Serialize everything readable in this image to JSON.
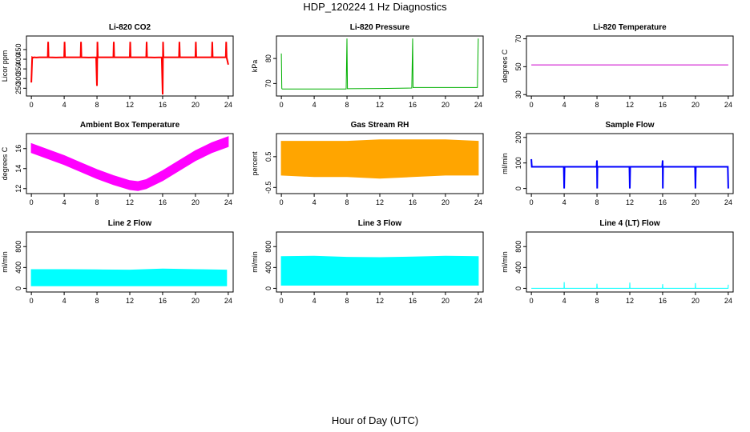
{
  "page": {
    "title": "HDP_120224  1 Hz Diagnostics",
    "xlabel": "Hour of Day (UTC)"
  },
  "chart_data": [
    {
      "type": "line",
      "title": "Li-820 CO2",
      "ylabel": "Licor ppm",
      "color": "#ff0000",
      "xlim": [
        -0.6,
        24.6
      ],
      "ylim": [
        210,
        520
      ],
      "yticks": [
        250,
        300,
        350,
        400,
        450
      ],
      "xticks": [
        0,
        4,
        8,
        12,
        16,
        20,
        24
      ],
      "series": [
        {
          "x": [
            0,
            0.1,
            0.2,
            0.3,
            0.6,
            1.0,
            2.0,
            2.05,
            2.1,
            3.0,
            4.0,
            4.05,
            4.1,
            5.0,
            6.0,
            6.05,
            6.1,
            7.0,
            7.9,
            8.0,
            8.05,
            8.1,
            9.0,
            10.0,
            10.05,
            10.1,
            11.0,
            12.0,
            12.05,
            12.1,
            13.0,
            14.0,
            14.05,
            14.1,
            15.0,
            15.9,
            16.0,
            16.05,
            16.1,
            17.0,
            18.0,
            18.05,
            18.1,
            19.0,
            20.0,
            20.05,
            20.1,
            21.0,
            22.0,
            22.05,
            22.1,
            23.0,
            23.7,
            23.75,
            23.8,
            24.0
          ],
          "y": [
            280,
            410,
            408,
            410,
            409,
            410,
            410,
            490,
            410,
            409,
            410,
            490,
            410,
            410,
            410,
            490,
            410,
            409,
            410,
            262,
            490,
            410,
            410,
            410,
            490,
            410,
            410,
            410,
            490,
            410,
            410,
            410,
            490,
            410,
            409,
            410,
            218,
            490,
            410,
            410,
            410,
            490,
            410,
            410,
            410,
            490,
            410,
            410,
            410,
            490,
            410,
            410,
            410,
            490,
            410,
            372
          ]
        }
      ]
    },
    {
      "type": "line",
      "title": "Li-820 Pressure",
      "ylabel": "kPa",
      "color": "#00b000",
      "xlim": [
        -0.6,
        24.6
      ],
      "ylim": [
        65,
        89
      ],
      "yticks": [
        70,
        80
      ],
      "xticks": [
        0,
        4,
        8,
        12,
        16,
        20,
        24
      ],
      "series": [
        {
          "x": [
            0,
            0.05,
            0.1,
            0.3,
            4.0,
            7.9,
            8.0,
            8.05,
            12.0,
            15.9,
            16.0,
            16.05,
            20.0,
            23.9,
            24.0
          ],
          "y": [
            82,
            68,
            67.8,
            67.8,
            67.8,
            67.8,
            88,
            67.9,
            68.0,
            68.2,
            88,
            68.4,
            68.4,
            68.4,
            88
          ]
        }
      ]
    },
    {
      "type": "line",
      "title": "Li-820 Temperature",
      "ylabel": "degrees C",
      "color": "#cc00cc",
      "xlim": [
        -0.6,
        24.6
      ],
      "ylim": [
        29,
        72
      ],
      "yticks": [
        30,
        50,
        70
      ],
      "xticks": [
        0,
        4,
        8,
        12,
        16,
        20,
        24
      ],
      "series": [
        {
          "x": [
            0,
            24
          ],
          "y": [
            51.3,
            51.3
          ]
        }
      ]
    },
    {
      "type": "area",
      "title": "Ambient Box Temperature",
      "ylabel": "degrees C",
      "color": "#ff00ff",
      "xlim": [
        -0.6,
        24.6
      ],
      "ylim": [
        11.5,
        17.5
      ],
      "yticks": [
        12,
        14,
        16
      ],
      "xticks": [
        0,
        4,
        8,
        12,
        16,
        20,
        24
      ],
      "series": [
        {
          "x": [
            0,
            2,
            4,
            6,
            8,
            10,
            12,
            13,
            14,
            16,
            18,
            20,
            22,
            24
          ],
          "low": [
            15.6,
            15.0,
            14.4,
            13.7,
            13.0,
            12.4,
            11.9,
            11.8,
            12.0,
            12.8,
            13.8,
            14.8,
            15.6,
            16.2
          ],
          "high": [
            16.5,
            15.9,
            15.3,
            14.6,
            13.9,
            13.3,
            12.8,
            12.7,
            12.9,
            13.8,
            14.8,
            15.8,
            16.6,
            17.2
          ]
        }
      ]
    },
    {
      "type": "area",
      "title": "Gas Stream RH",
      "ylabel": "percent",
      "color": "#ffa500",
      "xlim": [
        -0.6,
        24.6
      ],
      "ylim": [
        -0.7,
        1.25
      ],
      "yticks": [
        -0.5,
        0.5
      ],
      "xticks": [
        0,
        4,
        8,
        12,
        16,
        20,
        24
      ],
      "series": [
        {
          "x": [
            0,
            4,
            8,
            12,
            16,
            20,
            24
          ],
          "low": [
            -0.1,
            -0.15,
            -0.15,
            -0.2,
            -0.15,
            -0.1,
            -0.1
          ],
          "high": [
            1.0,
            1.0,
            1.0,
            1.05,
            1.05,
            1.05,
            1.0
          ]
        }
      ]
    },
    {
      "type": "line",
      "title": "Sample Flow",
      "ylabel": "ml/min",
      "color": "#0000ff",
      "xlim": [
        -0.6,
        24.6
      ],
      "ylim": [
        -20,
        215
      ],
      "yticks": [
        0,
        100,
        200
      ],
      "xticks": [
        0,
        4,
        8,
        12,
        16,
        20,
        24
      ],
      "series": [
        {
          "x": [
            0,
            0.05,
            0.1,
            3.95,
            4.0,
            4.05,
            7.95,
            8.0,
            8.02,
            8.05,
            11.95,
            12.0,
            12.05,
            15.95,
            16.0,
            16.02,
            16.05,
            19.95,
            20.0,
            20.05,
            23.95,
            24.0
          ],
          "y": [
            115,
            85,
            85,
            85,
            0,
            85,
            85,
            110,
            0,
            85,
            85,
            0,
            85,
            85,
            110,
            0,
            85,
            85,
            0,
            85,
            85,
            0
          ]
        }
      ]
    },
    {
      "type": "area",
      "title": "Line 2 Flow",
      "ylabel": "ml/min",
      "color": "#00ffff",
      "xlim": [
        -0.6,
        24.6
      ],
      "ylim": [
        -70,
        1080
      ],
      "yticks": [
        0,
        400,
        800
      ],
      "xticks": [
        0,
        4,
        8,
        12,
        16,
        20,
        24
      ],
      "series": [
        {
          "x": [
            0,
            4,
            8,
            12,
            16,
            18,
            20,
            23.8
          ],
          "low": [
            50,
            50,
            50,
            50,
            50,
            50,
            50,
            50
          ],
          "high": [
            360,
            360,
            355,
            350,
            370,
            365,
            360,
            350
          ]
        }
      ]
    },
    {
      "type": "area",
      "title": "Line 3 Flow",
      "ylabel": "ml/min",
      "color": "#00ffff",
      "xlim": [
        -0.6,
        24.6
      ],
      "ylim": [
        -70,
        1080
      ],
      "yticks": [
        0,
        400,
        800
      ],
      "xticks": [
        0,
        4,
        8,
        12,
        16,
        20,
        24
      ],
      "series": [
        {
          "x": [
            0,
            4,
            8,
            12,
            16,
            20,
            24
          ],
          "low": [
            60,
            60,
            60,
            60,
            60,
            60,
            60
          ],
          "high": [
            610,
            615,
            595,
            590,
            600,
            615,
            610
          ]
        }
      ]
    },
    {
      "type": "line",
      "title": "Line 4 (LT) Flow",
      "ylabel": "ml/min",
      "color": "#00ffff",
      "xlim": [
        -0.6,
        24.6
      ],
      "ylim": [
        -70,
        1080
      ],
      "yticks": [
        0,
        400,
        800
      ],
      "xticks": [
        0,
        4,
        8,
        12,
        16,
        20,
        24
      ],
      "series": [
        {
          "x": [
            0,
            3.98,
            4.0,
            4.02,
            7.98,
            8.0,
            8.02,
            11.98,
            12.0,
            12.02,
            15.98,
            16.0,
            16.02,
            19.98,
            20.0,
            20.02,
            23.98,
            24.0
          ],
          "y": [
            0,
            0,
            120,
            0,
            0,
            90,
            0,
            0,
            110,
            0,
            0,
            80,
            0,
            0,
            100,
            0,
            0,
            70
          ]
        }
      ]
    }
  ]
}
